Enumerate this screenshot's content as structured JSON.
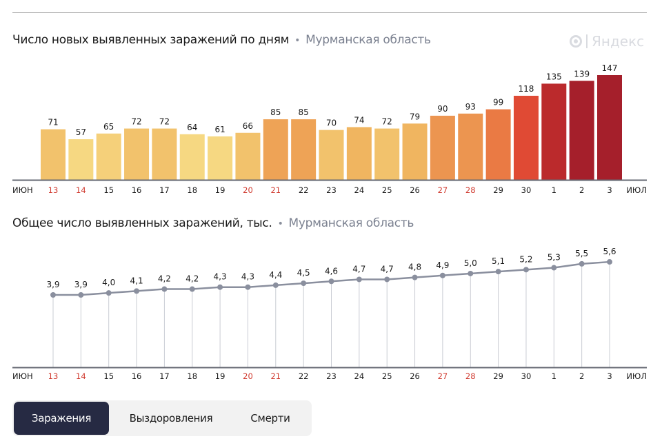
{
  "chart_data": [
    {
      "type": "bar",
      "title": "Число новых выявленных заражений по дням",
      "subtitle": "Мурманская область",
      "categories": [
        "13",
        "14",
        "15",
        "16",
        "17",
        "18",
        "19",
        "20",
        "21",
        "22",
        "23",
        "24",
        "25",
        "26",
        "27",
        "28",
        "29",
        "30",
        "1",
        "2",
        "3"
      ],
      "values": [
        71,
        57,
        65,
        72,
        72,
        64,
        61,
        66,
        85,
        85,
        70,
        74,
        72,
        79,
        90,
        93,
        99,
        118,
        135,
        139,
        147
      ],
      "bar_colors": [
        "#f2c26c",
        "#f6d882",
        "#f5d07a",
        "#f2c26c",
        "#f2c26c",
        "#f6d882",
        "#f6d882",
        "#f2c26c",
        "#eea356",
        "#eea356",
        "#f2c26c",
        "#f0b560",
        "#f2c26c",
        "#f0b560",
        "#ec9550",
        "#ec9550",
        "#ea7a44",
        "#e04a34",
        "#bb2a2c",
        "#a51f2b",
        "#a51f2b"
      ],
      "red_dates": [
        "13",
        "14",
        "20",
        "21",
        "27",
        "28"
      ],
      "x_start_label": "ИЮН",
      "x_end_label": "ИЮЛ",
      "xlabel": "",
      "ylabel": "",
      "ylim": [
        0,
        147
      ],
      "grid": false
    },
    {
      "type": "line",
      "title": "Общее число выявленных заражений, тыс.",
      "subtitle": "Мурманская область",
      "categories": [
        "13",
        "14",
        "15",
        "16",
        "17",
        "18",
        "19",
        "20",
        "21",
        "22",
        "23",
        "24",
        "25",
        "26",
        "27",
        "28",
        "29",
        "30",
        "1",
        "2",
        "3"
      ],
      "values": [
        3.9,
        3.9,
        4.0,
        4.1,
        4.2,
        4.2,
        4.3,
        4.3,
        4.4,
        4.5,
        4.6,
        4.7,
        4.7,
        4.8,
        4.9,
        5.0,
        5.1,
        5.2,
        5.3,
        5.5,
        5.6
      ],
      "value_labels": [
        "3,9",
        "3,9",
        "4,0",
        "4,1",
        "4,2",
        "4,2",
        "4,3",
        "4,3",
        "4,4",
        "4,5",
        "4,6",
        "4,7",
        "4,7",
        "4,8",
        "4,9",
        "5,0",
        "5,1",
        "5,2",
        "5,3",
        "5,5",
        "5,6"
      ],
      "red_dates": [
        "13",
        "14",
        "20",
        "21",
        "27",
        "28"
      ],
      "x_start_label": "ИЮН",
      "x_end_label": "ИЮЛ",
      "line_color": "#8a8f9e",
      "xlabel": "",
      "ylabel": "",
      "grid": false
    }
  ],
  "header": {
    "chart1_title": "Число новых выявленных заражений по дням",
    "chart1_region": "Мурманская область",
    "chart2_title": "Общее число выявленных заражений, тыс.",
    "chart2_region": "Мурманская область",
    "separator": "•",
    "logo_text": "Яндекс"
  },
  "tabs": [
    {
      "label": "Заражения",
      "active": true
    },
    {
      "label": "Выздоровления",
      "active": false
    },
    {
      "label": "Смерти",
      "active": false
    }
  ]
}
